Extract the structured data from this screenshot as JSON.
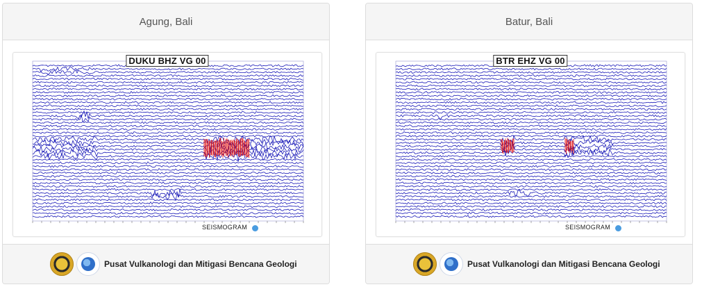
{
  "panels": [
    {
      "title": "Agung, Bali",
      "station": "DUKU BHZ VG 00",
      "seismogram_label": "SEISMOGRAM",
      "footer_text": "Pusat Vulkanologi dan Mitigasi Bencana Geologi",
      "logo_icons": [
        "esdm-logo-icon",
        "magma-logo-icon"
      ]
    },
    {
      "title": "Batur, Bali",
      "station": "BTR EHZ VG 00",
      "seismogram_label": "SEISMOGRAM",
      "footer_text": "Pusat Vulkanologi dan Mitigasi Bencana Geologi",
      "logo_icons": [
        "esdm-logo-icon",
        "magma-logo-icon"
      ]
    }
  ],
  "colors": {
    "trace": "#1a1ab8",
    "event": "#e01515",
    "header_bg": "#f5f5f5"
  }
}
